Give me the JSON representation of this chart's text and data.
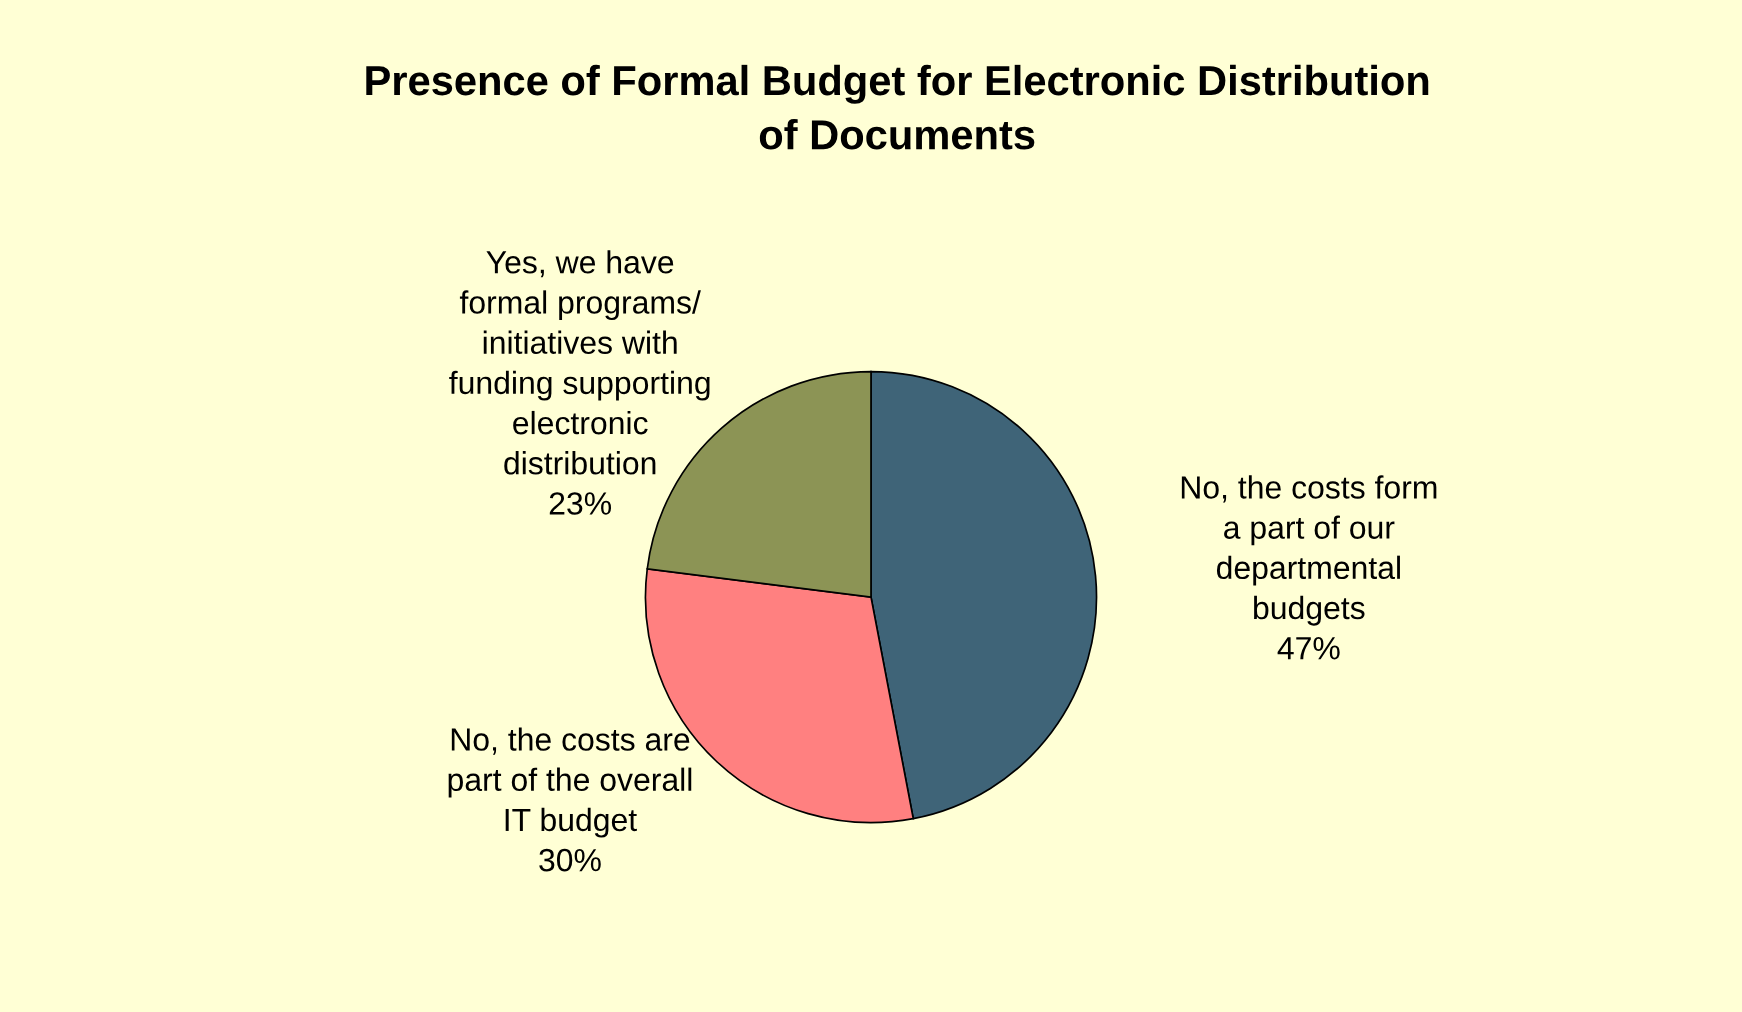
{
  "chart_data": {
    "type": "pie",
    "title": "Presence of Formal Budget for Electronic Distribution\nof Documents",
    "categories": [
      "No, the costs form\na part of our\ndepartmental\nbudgets",
      "No, the costs are\npart of the overall\nIT budget",
      "Yes, we have\nformal programs/\ninitiatives with\nfunding supporting\nelectronic\ndistribution"
    ],
    "values": [
      47,
      30,
      23
    ],
    "value_labels": [
      "47%",
      "30%",
      "23%"
    ],
    "colors": [
      "#3f6478",
      "#ff8080",
      "#8c9455"
    ],
    "legend": false
  }
}
